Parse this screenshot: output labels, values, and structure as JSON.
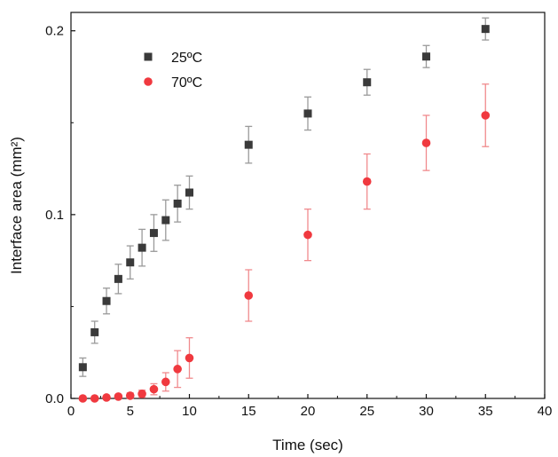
{
  "chart_data": {
    "type": "scatter",
    "title": "",
    "xlabel": "Time (sec)",
    "ylabel": "Interface area (mm²)",
    "xlim": [
      0,
      40
    ],
    "ylim": [
      0,
      0.21
    ],
    "x_ticks": [
      0,
      5,
      10,
      15,
      20,
      25,
      30,
      35,
      40
    ],
    "y_ticks": [
      0.0,
      0.1,
      0.2
    ],
    "x_tick_labels": [
      "0",
      "5",
      "10",
      "15",
      "20",
      "25",
      "30",
      "35",
      "40"
    ],
    "y_tick_labels": [
      "0.0",
      "0.1",
      "0.2"
    ],
    "grid": false,
    "legend_position": "top-left",
    "series": [
      {
        "name": "25ºC",
        "marker": "square",
        "color": "#3a3a3a",
        "error_color": "#9a9a9a",
        "x": [
          1,
          2,
          3,
          4,
          5,
          6,
          7,
          8,
          9,
          10,
          15,
          20,
          25,
          30,
          35
        ],
        "y": [
          0.017,
          0.036,
          0.053,
          0.065,
          0.074,
          0.082,
          0.09,
          0.097,
          0.106,
          0.112,
          0.138,
          0.155,
          0.172,
          0.186,
          0.201
        ],
        "error": [
          0.005,
          0.006,
          0.007,
          0.008,
          0.009,
          0.01,
          0.01,
          0.011,
          0.01,
          0.009,
          0.01,
          0.009,
          0.007,
          0.006,
          0.006
        ]
      },
      {
        "name": "70ºC",
        "marker": "circle",
        "color": "#f0393f",
        "error_color": "#f08a8d",
        "x": [
          1,
          2,
          3,
          4,
          5,
          6,
          7,
          8,
          9,
          10,
          15,
          20,
          25,
          30,
          35
        ],
        "y": [
          0.0,
          0.0,
          0.0005,
          0.001,
          0.0015,
          0.0025,
          0.005,
          0.009,
          0.016,
          0.022,
          0.056,
          0.089,
          0.118,
          0.139,
          0.154
        ],
        "error": [
          0.0003,
          0.0003,
          0.0005,
          0.001,
          0.0015,
          0.002,
          0.003,
          0.005,
          0.01,
          0.011,
          0.014,
          0.014,
          0.015,
          0.015,
          0.017
        ]
      }
    ]
  }
}
